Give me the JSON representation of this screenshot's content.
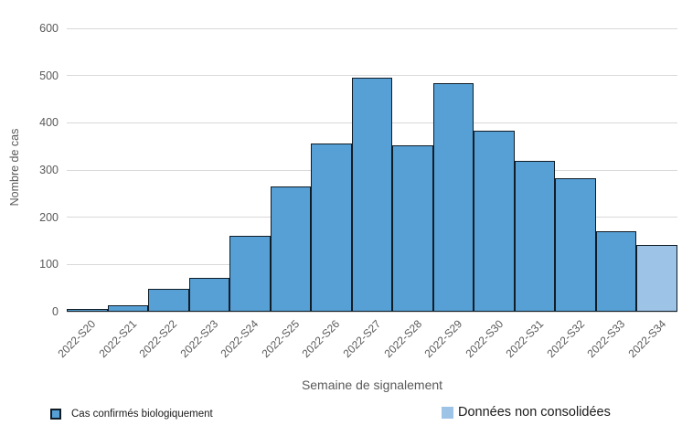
{
  "chart_data": {
    "type": "bar",
    "title": "",
    "xlabel": "Semaine de signalement",
    "ylabel": "Nombre de cas",
    "ylim": [
      0,
      600
    ],
    "yticks": [
      0,
      100,
      200,
      300,
      400,
      500,
      600
    ],
    "grid": true,
    "legend_position": "bottom",
    "categories": [
      "2022-S20",
      "2022-S21",
      "2022-S22",
      "2022-S23",
      "2022-S24",
      "2022-S25",
      "2022-S26",
      "2022-S27",
      "2022-S28",
      "2022-S29",
      "2022-S30",
      "2022-S31",
      "2022-S32",
      "2022-S33",
      "2022-S34"
    ],
    "series": [
      {
        "name": "Cas confirmés biologiquement",
        "color": "#56a0d6",
        "border_color": "#101c26",
        "values": [
          5,
          14,
          48,
          71,
          160,
          265,
          357,
          495,
          352,
          484,
          383,
          319,
          283,
          171,
          null
        ]
      },
      {
        "name": "Données non consolidées",
        "color": "#9dc3e6",
        "border_color": "#101c26",
        "values": [
          null,
          null,
          null,
          null,
          null,
          null,
          null,
          null,
          null,
          null,
          null,
          null,
          null,
          null,
          142
        ]
      }
    ]
  },
  "colors": {
    "gridline": "#d9d9d9",
    "axis_text": "#595959",
    "legend_text": "#1a1a1a",
    "background": "#ffffff"
  }
}
